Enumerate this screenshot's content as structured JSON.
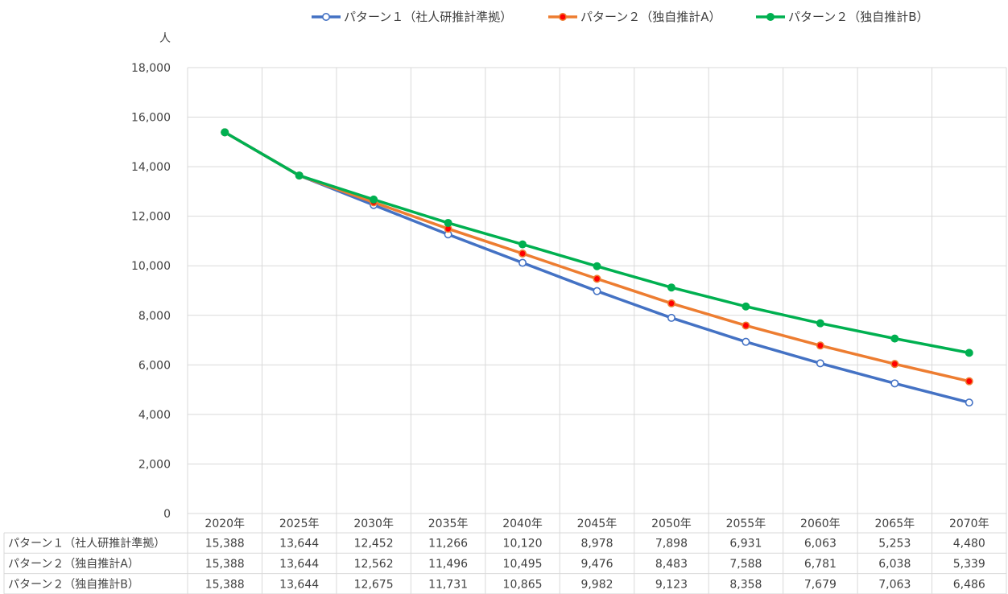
{
  "chart_data": {
    "type": "line",
    "title": "",
    "ylabel": "人",
    "xlabel": "",
    "ylim": [
      0,
      18000
    ],
    "yticks": [
      0,
      2000,
      4000,
      6000,
      8000,
      10000,
      12000,
      14000,
      16000,
      18000
    ],
    "ytick_labels": [
      "0",
      "2,000",
      "4,000",
      "6,000",
      "8,000",
      "10,000",
      "12,000",
      "14,000",
      "16,000",
      "18,000"
    ],
    "categories": [
      "2020年",
      "2025年",
      "2030年",
      "2035年",
      "2040年",
      "2045年",
      "2050年",
      "2055年",
      "2060年",
      "2065年",
      "2070年"
    ],
    "grid": true,
    "legend_position": "top",
    "series": [
      {
        "name": "パターン１（社人研推計準拠）",
        "color": "#4472C4",
        "marker": "open-circle",
        "values": [
          15388,
          13644,
          12452,
          11266,
          10120,
          8978,
          7898,
          6931,
          6063,
          5253,
          4480
        ],
        "labels": [
          "15,388",
          "13,644",
          "12,452",
          "11,266",
          "10,120",
          "8,978",
          "7,898",
          "6,931",
          "6,063",
          "5,253",
          "4,480"
        ]
      },
      {
        "name": "パターン２（独自推計A）",
        "color": "#ED7D31",
        "marker": "red-circle",
        "values": [
          15388,
          13644,
          12562,
          11496,
          10495,
          9476,
          8483,
          7588,
          6781,
          6038,
          5339
        ],
        "labels": [
          "15,388",
          "13,644",
          "12,562",
          "11,496",
          "10,495",
          "9,476",
          "8,483",
          "7,588",
          "6,781",
          "6,038",
          "5,339"
        ]
      },
      {
        "name": "パターン２（独自推計B）",
        "color": "#00B050",
        "marker": "filled-circle",
        "values": [
          15388,
          13644,
          12675,
          11731,
          10865,
          9982,
          9123,
          8358,
          7679,
          7063,
          6486
        ],
        "labels": [
          "15,388",
          "13,644",
          "12,675",
          "11,731",
          "10,865",
          "9,982",
          "9,123",
          "8,358",
          "7,679",
          "7,063",
          "6,486"
        ]
      }
    ]
  }
}
